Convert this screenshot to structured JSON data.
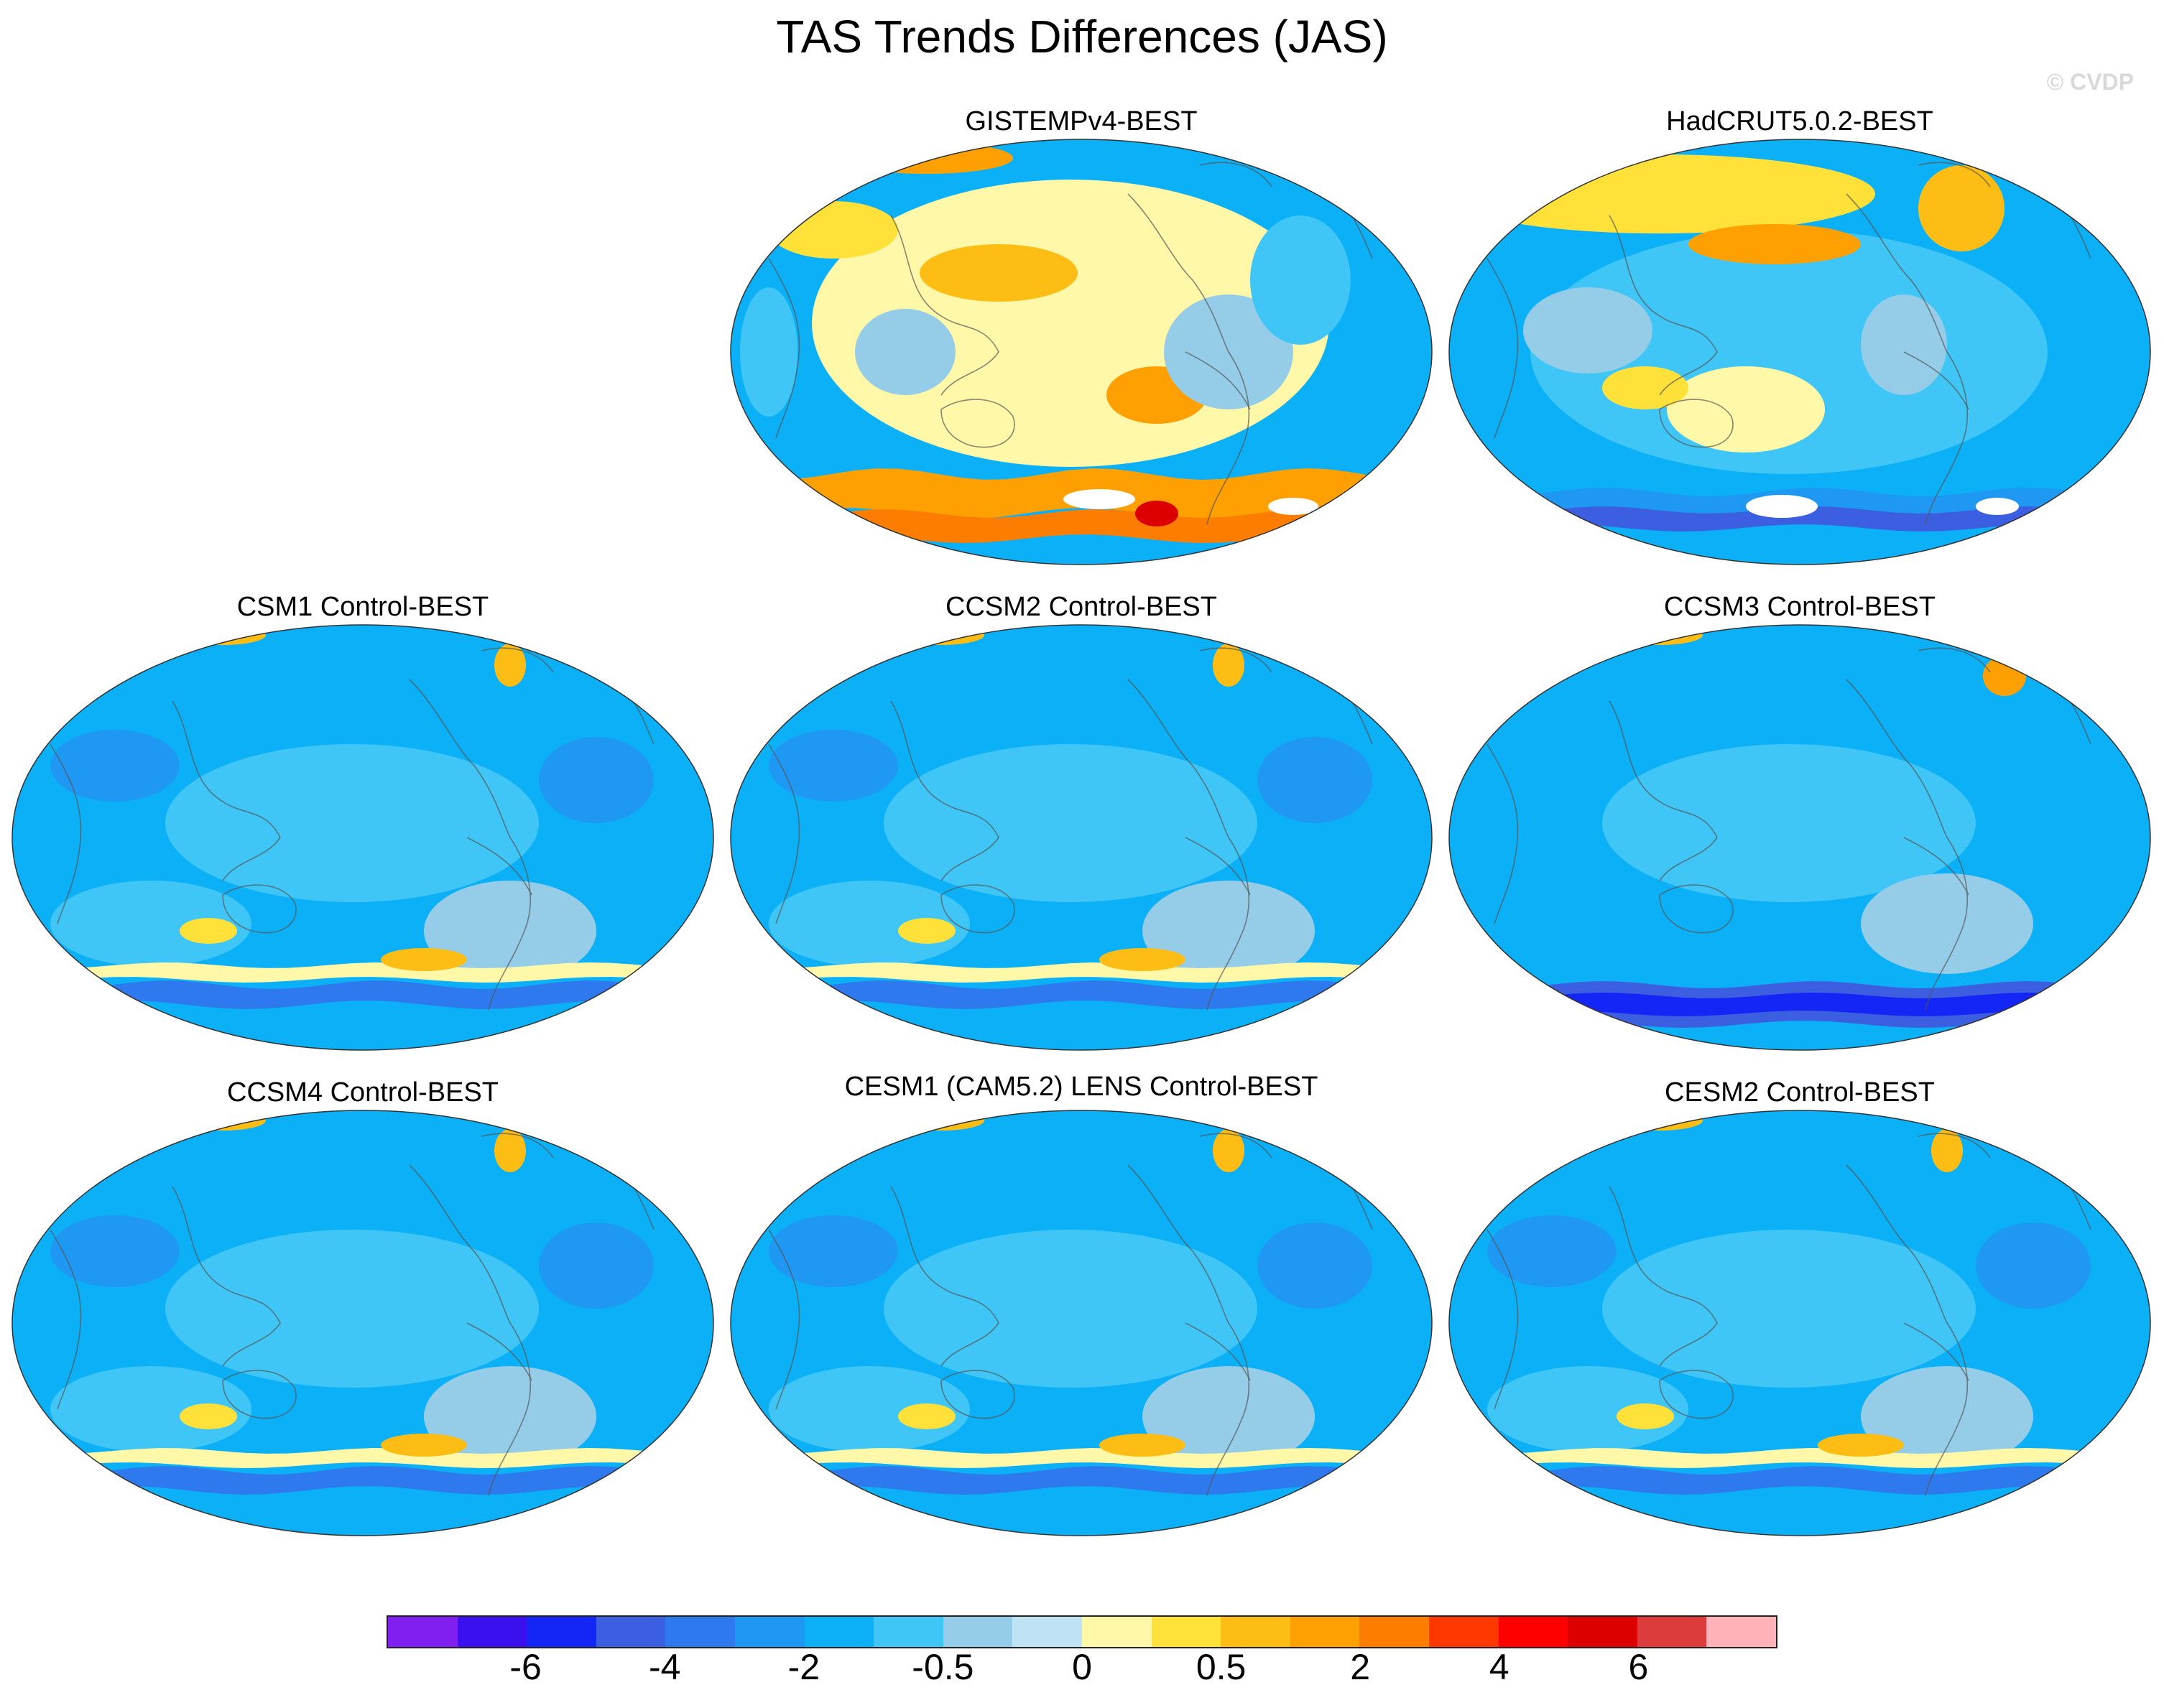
{
  "title": "TAS Trends Differences (JAS)",
  "credit": "© CVDP",
  "colors": {
    "background_ocean": "#0bb0f6",
    "land_outline": "#555555",
    "scale": [
      "#7f1ff0",
      "#3a10ee",
      "#1326f5",
      "#3b5fe0",
      "#2f79ee",
      "#1f98f4",
      "#0bb0f6",
      "#3fc6f6",
      "#95cde9",
      "#bfe3f5",
      "#fff8a8",
      "#ffe13a",
      "#fdbd14",
      "#fea002",
      "#fd7d00",
      "#ff3800",
      "#fe0000",
      "#dc0000",
      "#dd3c3c",
      "#ffb3b8"
    ]
  },
  "panels": [
    {
      "id": "gistemp",
      "label": "GISTEMPv4-BEST",
      "pattern": "warm-mixed"
    },
    {
      "id": "hadcrut",
      "label": "HadCRUT5.0.2-BEST",
      "pattern": "cool-mixed"
    },
    {
      "id": "csm1",
      "label": "CSM1 Control-BEST",
      "pattern": "cool"
    },
    {
      "id": "ccsm2",
      "label": "CCSM2 Control-BEST",
      "pattern": "cool"
    },
    {
      "id": "ccsm3",
      "label": "CCSM3 Control-BEST",
      "pattern": "cool-strong-south"
    },
    {
      "id": "ccsm4",
      "label": "CCSM4 Control-BEST",
      "pattern": "cool"
    },
    {
      "id": "cesm1",
      "label": "CESM1 (CAM5.2) LENS Control-BEST",
      "pattern": "cool"
    },
    {
      "id": "cesm2",
      "label": "CESM2 Control-BEST",
      "pattern": "cool"
    }
  ],
  "colorbar": {
    "ticks": [
      "-6",
      "-4",
      "-2",
      "-0.5",
      "0",
      "0.5",
      "2",
      "4",
      "6"
    ],
    "tick_after_cell": [
      2,
      4,
      6,
      8,
      10,
      12,
      14,
      16,
      18
    ]
  }
}
